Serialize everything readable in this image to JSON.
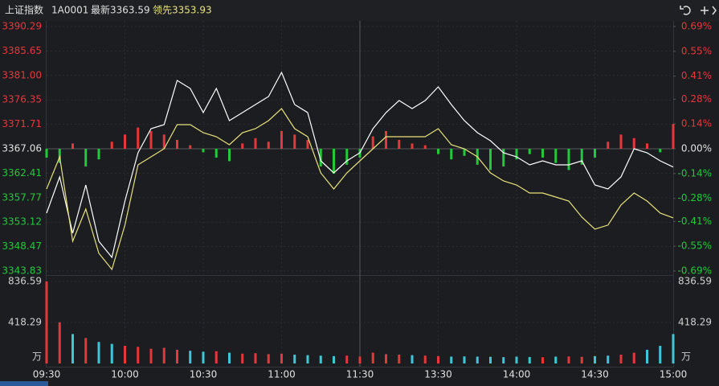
{
  "header": {
    "name": "上证指数",
    "code": "1A0001",
    "latest": "最新3363.59",
    "leading": "领先3353.93"
  },
  "chart_data": [
    {
      "type": "intraday",
      "x": [
        0,
        5,
        10,
        15,
        20,
        25,
        30,
        35,
        40,
        45,
        50,
        55,
        60,
        65,
        70,
        75,
        80,
        85,
        90,
        95,
        100,
        105,
        110,
        115,
        120,
        125,
        130,
        135,
        140,
        145,
        150,
        155,
        160,
        165,
        170,
        175,
        180,
        185,
        190,
        195,
        200,
        205,
        210,
        215,
        220,
        225,
        230,
        235,
        240
      ],
      "xlim": [
        0,
        240
      ],
      "xticks": [
        {
          "value": 0,
          "label": "09:30"
        },
        {
          "value": 30,
          "label": "10:00"
        },
        {
          "value": 60,
          "label": "10:30"
        },
        {
          "value": 90,
          "label": "11:00"
        },
        {
          "value": 120,
          "label": "11:30"
        },
        {
          "value": 150,
          "label": "13:30"
        },
        {
          "value": 180,
          "label": "14:00"
        },
        {
          "value": 210,
          "label": "14:30"
        },
        {
          "value": 240,
          "label": "15:00"
        }
      ],
      "ylim": [
        3343.83,
        3390.29
      ],
      "yticks": [
        3390.29,
        3385.65,
        {
          "value": 3381,
          "label": "3381.00"
        },
        3376.35,
        3371.71,
        3367.06,
        3362.41,
        3357.77,
        3353.12,
        3348.47,
        3343.83
      ],
      "y2lim": [
        -0.69,
        0.69
      ],
      "y2ticks": [
        {
          "value": 0.69,
          "label": "0.69%"
        },
        {
          "value": 0.55,
          "label": "0.55%"
        },
        {
          "value": 0.41,
          "label": "0.41%"
        },
        {
          "value": 0.28,
          "label": "0.28%"
        },
        {
          "value": 0.14,
          "label": "0.14%"
        },
        {
          "value": 0,
          "label": "0.00%"
        },
        {
          "value": -0.14,
          "label": "-0.14%"
        },
        {
          "value": -0.28,
          "label": "-0.28%"
        },
        {
          "value": -0.41,
          "label": "-0.41%"
        },
        {
          "value": -0.55,
          "label": "-0.55%"
        },
        {
          "value": -0.69,
          "label": "-0.69%"
        }
      ],
      "up_color": "#e5383b",
      "down_color": "#22c93a",
      "series": [
        {
          "kind": "bar",
          "axis": "y2",
          "values": [
            -0.05,
            -0.08,
            0.03,
            -0.1,
            -0.06,
            0.04,
            0.08,
            0.12,
            0.1,
            0.08,
            0.05,
            0.02,
            -0.02,
            -0.05,
            -0.07,
            0.03,
            0.06,
            0.04,
            0.1,
            0.08,
            0.05,
            -0.1,
            -0.14,
            -0.09,
            -0.05,
            0.07,
            0.1,
            0.05,
            0.03,
            0.02,
            -0.03,
            -0.06,
            -0.04,
            -0.09,
            -0.12,
            -0.1,
            -0.06,
            -0.03,
            -0.05,
            -0.08,
            -0.12,
            -0.09,
            -0.05,
            0.04,
            0.08,
            0.06,
            0.03,
            -0.02,
            0.14
          ]
        },
        {
          "kind": "line",
          "color": "#ffffff",
          "values": [
            3354.84,
            3361.71,
            3351.02,
            3360.19,
            3349.49,
            3346.43,
            3357.13,
            3366.3,
            3370.88,
            3371.65,
            3380.05,
            3378.52,
            3373.94,
            3378.52,
            3372.41,
            3373.94,
            3375.47,
            3377.0,
            3381.58,
            3375.47,
            3373.94,
            3364.77,
            3362.48,
            3364.77,
            3366.3,
            3370.88,
            3373.94,
            3376.23,
            3374.7,
            3376.23,
            3378.83,
            3375.47,
            3372.41,
            3370.12,
            3368.59,
            3366.3,
            3365.53,
            3364.01,
            3364.77,
            3364.01,
            3364.01,
            3364.77,
            3360.19,
            3359.42,
            3361.71,
            3367.06,
            3366.3,
            3364.77,
            3363.59
          ]
        },
        {
          "kind": "line",
          "color": "#e8e27a",
          "values": [
            3359.42,
            3365.53,
            3349.49,
            3355.6,
            3347.2,
            3344.14,
            3352.55,
            3364.01,
            3365.53,
            3367.06,
            3371.65,
            3371.65,
            3370.12,
            3369.35,
            3367.83,
            3370.12,
            3370.88,
            3372.41,
            3374.7,
            3370.88,
            3369.35,
            3362.48,
            3359.42,
            3362.48,
            3364.77,
            3367.06,
            3369.35,
            3369.35,
            3369.35,
            3369.35,
            3370.88,
            3367.83,
            3367.06,
            3365.53,
            3362.48,
            3360.95,
            3360.19,
            3358.66,
            3358.66,
            3357.89,
            3357.13,
            3354.07,
            3351.78,
            3352.55,
            3356.37,
            3358.66,
            3357.13,
            3354.84,
            3353.93
          ]
        }
      ]
    },
    {
      "type": "bar",
      "y_label": "万",
      "ylim": [
        0,
        836.59
      ],
      "yticks": [
        836.59,
        418.29
      ],
      "up_color": "#e5383b",
      "down_color": "#3fc6d8",
      "values": [
        836.59,
        420,
        300,
        260,
        220,
        200,
        180,
        170,
        150,
        160,
        140,
        130,
        120,
        125,
        110,
        100,
        105,
        95,
        100,
        90,
        85,
        80,
        75,
        80,
        70,
        110,
        95,
        90,
        85,
        80,
        75,
        70,
        72,
        70,
        68,
        65,
        70,
        66,
        64,
        70,
        72,
        68,
        75,
        80,
        90,
        110,
        140,
        180,
        300
      ]
    }
  ]
}
